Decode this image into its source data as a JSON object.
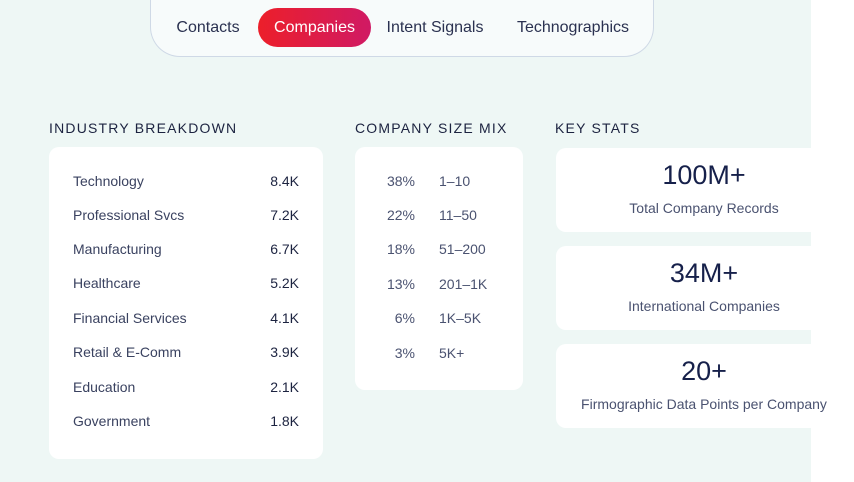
{
  "tabs": [
    {
      "label": "Contacts"
    },
    {
      "label": "Companies"
    },
    {
      "label": "Intent Signals"
    },
    {
      "label": "Technographics"
    }
  ],
  "industry": {
    "title": "INDUSTRY BREAKDOWN",
    "rows": [
      {
        "label": "Technology",
        "value": "8.4K"
      },
      {
        "label": "Professional Svcs",
        "value": "7.2K"
      },
      {
        "label": "Manufacturing",
        "value": "6.7K"
      },
      {
        "label": "Healthcare",
        "value": "5.2K"
      },
      {
        "label": "Financial Services",
        "value": "4.1K"
      },
      {
        "label": "Retail & E-Comm",
        "value": "3.9K"
      },
      {
        "label": "Education",
        "value": "2.1K"
      },
      {
        "label": "Government",
        "value": "1.8K"
      }
    ]
  },
  "size_mix": {
    "title": "COMPANY SIZE MIX",
    "rows": [
      {
        "pct": "38%",
        "range": "1–10"
      },
      {
        "pct": "22%",
        "range": "11–50"
      },
      {
        "pct": "18%",
        "range": "51–200"
      },
      {
        "pct": "13%",
        "range": "201–1K"
      },
      {
        "pct": "6%",
        "range": "1K–5K"
      },
      {
        "pct": "3%",
        "range": "5K+"
      }
    ]
  },
  "key_stats": {
    "title": "KEY STATS",
    "items": [
      {
        "value": "100M+",
        "caption": "Total Company Records"
      },
      {
        "value": "34M+",
        "caption": "International Companies"
      },
      {
        "value": "20+",
        "caption": "Firmographic Data Points per Company"
      }
    ]
  },
  "colors": {
    "accent_start": "#ec1f2a",
    "accent_end": "#d01a64",
    "panel_bg": "#eef7f5"
  }
}
